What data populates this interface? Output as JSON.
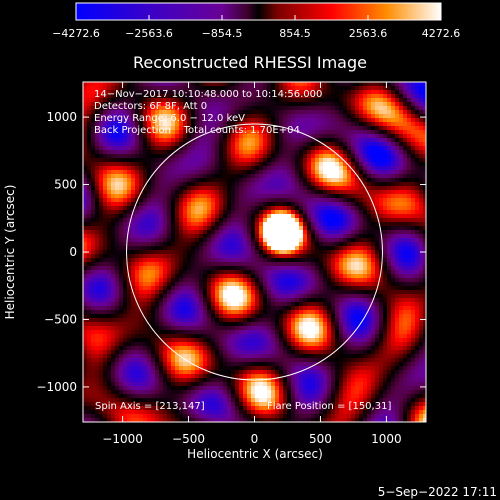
{
  "chart_data": {
    "type": "heatmap",
    "title": "Reconstructed RHESSI Image",
    "xlabel": "Heliocentric X (arcsec)",
    "ylabel": "Heliocentric Y (arcsec)",
    "xlim": [
      -1300,
      1300
    ],
    "ylim": [
      -1260,
      1260
    ],
    "x_ticks": [
      -1000,
      -500,
      0,
      500,
      1000
    ],
    "y_ticks": [
      -1000,
      -500,
      0,
      500,
      1000
    ],
    "x_tick_labels": [
      "−1000",
      "−500",
      "0",
      "500",
      "1000"
    ],
    "y_tick_labels": [
      "−1000",
      "−500",
      "0",
      "500",
      "1000"
    ],
    "colorbar": {
      "min": -4272.6,
      "max": 4272.6,
      "ticks": [
        -4272.6,
        -2563.6,
        -854.5,
        854.5,
        2563.6,
        4272.6
      ],
      "tick_labels": [
        "−4272.6",
        "−2563.6",
        "−854.5",
        "854.5",
        "2563.6",
        "4272.6"
      ],
      "colormap": [
        "#0000ff",
        "#3a00c8",
        "#6a0096",
        "#50003c",
        "#000000",
        "#780000",
        "#ff0000",
        "#ff8c00",
        "#ffffff"
      ]
    },
    "solar_disk_radius_arcsec": 970,
    "flare_marker": [
      213,
      147
    ],
    "annotations": [
      "14−Nov−2017 10:10:48.000 to 10:14:56.000",
      "Detectors: 6F 8F, Att 0",
      "Energy Range: 6.0 − 12.0 keV",
      "Back Projection    Total counts: 1.70E+04"
    ],
    "spin_axis": "Spin Axis = [213,147]",
    "flare_position": "Flare Position = [150,31]"
  },
  "timestamp": "5−Sep−2022 17:11"
}
